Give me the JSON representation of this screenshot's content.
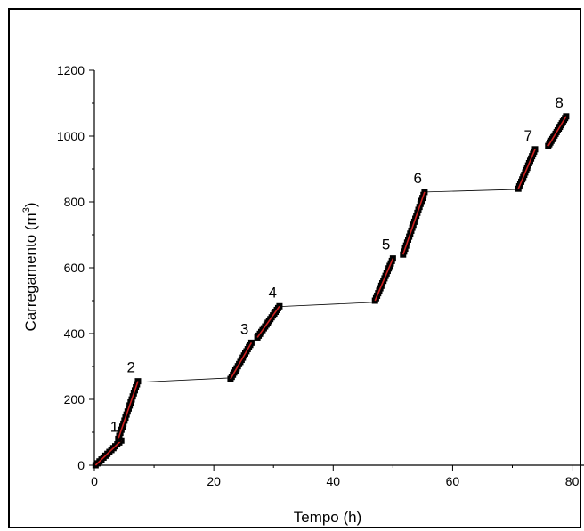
{
  "chart_data": {
    "type": "scatter",
    "title": "",
    "xlabel": "Tempo (h)",
    "ylabel_main": "Carregamento (m",
    "ylabel_sup": "3",
    "ylabel_close": ")",
    "xlim": [
      0,
      82
    ],
    "ylim": [
      0,
      1200
    ],
    "xticks": [
      0,
      20,
      40,
      60,
      80
    ],
    "yticks": [
      0,
      200,
      400,
      600,
      800,
      1000,
      1200
    ],
    "xtick_labels": [
      "0",
      "20",
      "40",
      "60",
      "80"
    ],
    "ytick_labels": [
      "0",
      "200",
      "400",
      "600",
      "800",
      "1000",
      "1200"
    ],
    "grid": false,
    "colors": {
      "marker": "#000000",
      "fit": "#cc1f1f",
      "connector": "#000000"
    },
    "segments": [
      {
        "label": "1",
        "x": [
          0.2,
          4.5
        ],
        "y": [
          0,
          75
        ],
        "n": 14
      },
      {
        "label": "2",
        "x": [
          4.0,
          7.3
        ],
        "y": [
          80,
          255
        ],
        "n": 20
      },
      {
        "label": "3",
        "x": [
          22.8,
          26.3
        ],
        "y": [
          262,
          372
        ],
        "n": 18
      },
      {
        "label": "4",
        "x": [
          27.3,
          31.0
        ],
        "y": [
          388,
          483
        ],
        "n": 18
      },
      {
        "label": "5",
        "x": [
          47.0,
          50.0
        ],
        "y": [
          500,
          628
        ],
        "n": 18
      },
      {
        "label": "6",
        "x": [
          51.7,
          55.3
        ],
        "y": [
          640,
          830
        ],
        "n": 22
      },
      {
        "label": "7",
        "x": [
          71.0,
          73.8
        ],
        "y": [
          840,
          960
        ],
        "n": 18
      },
      {
        "label": "8",
        "x": [
          76.0,
          79.0
        ],
        "y": [
          970,
          1060
        ],
        "n": 18
      }
    ],
    "connectors": [
      {
        "x": [
          7.5,
          22.5
        ],
        "y": [
          252,
          265
        ]
      },
      {
        "x": [
          31.0,
          46.7
        ],
        "y": [
          482,
          495
        ]
      },
      {
        "x": [
          55.5,
          71.0
        ],
        "y": [
          830,
          838
        ]
      }
    ]
  }
}
